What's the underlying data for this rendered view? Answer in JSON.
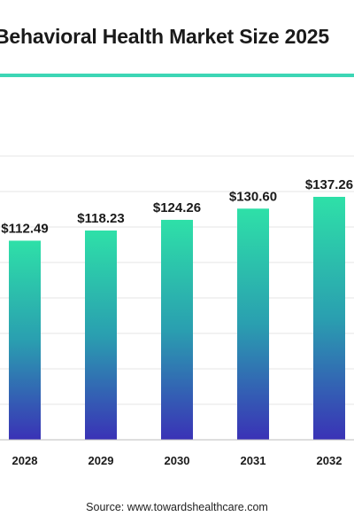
{
  "title": "Behavioral Health Market Size 2025",
  "source": "Source: www.towardshealthcare.com",
  "colors": {
    "accent": "#3dd6b5",
    "bar_top": "#2ee0a8",
    "bar_bottom": "#3a32b6",
    "gridline": "#e6e6e6"
  },
  "chart_data": {
    "type": "bar",
    "categories": [
      "2028",
      "2029",
      "2030",
      "2031",
      "2032"
    ],
    "values": [
      112.49,
      118.23,
      124.26,
      130.6,
      137.26
    ],
    "data_labels": [
      "$112.49",
      "$118.23",
      "$124.26",
      "$130.60",
      "$137.26"
    ],
    "title": "Behavioral Health Market Size 2025",
    "xlabel": "",
    "ylabel": "",
    "grid": true
  }
}
